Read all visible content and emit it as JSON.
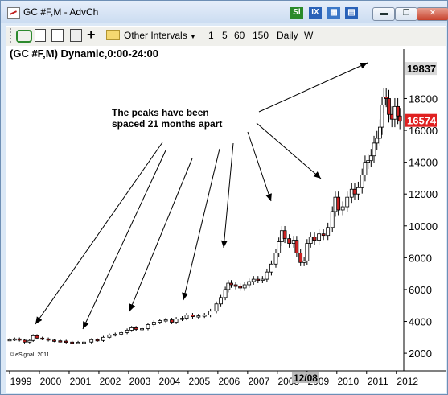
{
  "window": {
    "title": "GC #F,M - AdvCh",
    "icons": [
      "sl-icon",
      "ix-icon",
      "grid-icon",
      "minimize-icon",
      "restore-icon",
      "close-icon"
    ],
    "icon_labels": {
      "sl": "Sl",
      "ix": "IX"
    }
  },
  "toolbar": {
    "interval_menu": "Other Intervals",
    "intervals": [
      "1",
      "5",
      "60",
      "150",
      "Daily",
      "W"
    ]
  },
  "chart": {
    "header": "(GC #F,M) Dynamic,0:00-24:00",
    "watermark": "© eSignal, 2011",
    "annotation_line1": "The peaks have been",
    "annotation_line2": "spaced 21 months apart",
    "cursor_label": "12/08",
    "top_price_label": "19837",
    "last_price_label": "16574",
    "colors": {
      "up": "#ffffff",
      "down": "#cc2222",
      "outline": "#000000",
      "last_price_bg": "#e02020"
    }
  },
  "chart_data": {
    "type": "candlestick",
    "x_tick_labels": [
      "1999",
      "2000",
      "2001",
      "2002",
      "2003",
      "2004",
      "2005",
      "2006",
      "2007",
      "2008",
      "2009",
      "2010",
      "2011",
      "2012"
    ],
    "y_tick_labels": [
      "2000",
      "4000",
      "6000",
      "8000",
      "10000",
      "12000",
      "14000",
      "16000",
      "18000"
    ],
    "ylim": [
      1500,
      20500
    ],
    "xlim": [
      1999.0,
      2012.25
    ],
    "series": [
      {
        "name": "GC #F,M",
        "points": [
          [
            1999.0,
            2850
          ],
          [
            1999.17,
            2900
          ],
          [
            1999.33,
            2820
          ],
          [
            1999.5,
            2700
          ],
          [
            1999.67,
            2800
          ],
          [
            1999.79,
            3100
          ],
          [
            1999.92,
            2950
          ],
          [
            2000.1,
            2900
          ],
          [
            2000.3,
            2820
          ],
          [
            2000.5,
            2780
          ],
          [
            2000.7,
            2760
          ],
          [
            2000.9,
            2700
          ],
          [
            2001.1,
            2650
          ],
          [
            2001.3,
            2690
          ],
          [
            2001.5,
            2700
          ],
          [
            2001.75,
            2850
          ],
          [
            2001.95,
            2800
          ],
          [
            2002.15,
            3000
          ],
          [
            2002.35,
            3150
          ],
          [
            2002.55,
            3200
          ],
          [
            2002.75,
            3300
          ],
          [
            2002.95,
            3450
          ],
          [
            2003.1,
            3600
          ],
          [
            2003.25,
            3500
          ],
          [
            2003.45,
            3550
          ],
          [
            2003.65,
            3800
          ],
          [
            2003.85,
            3950
          ],
          [
            2004.05,
            4050
          ],
          [
            2004.25,
            4100
          ],
          [
            2004.45,
            3950
          ],
          [
            2004.6,
            4150
          ],
          [
            2004.8,
            4200
          ],
          [
            2004.95,
            4400
          ],
          [
            2005.15,
            4300
          ],
          [
            2005.35,
            4350
          ],
          [
            2005.55,
            4400
          ],
          [
            2005.75,
            4650
          ],
          [
            2005.95,
            5100
          ],
          [
            2006.1,
            5500
          ],
          [
            2006.25,
            6000
          ],
          [
            2006.35,
            6400
          ],
          [
            2006.45,
            6300
          ],
          [
            2006.6,
            6200
          ],
          [
            2006.75,
            6100
          ],
          [
            2006.9,
            6300
          ],
          [
            2007.05,
            6500
          ],
          [
            2007.2,
            6650
          ],
          [
            2007.35,
            6600
          ],
          [
            2007.5,
            6650
          ],
          [
            2007.65,
            7100
          ],
          [
            2007.8,
            7600
          ],
          [
            2007.95,
            8300
          ],
          [
            2008.05,
            9000
          ],
          [
            2008.15,
            9700
          ],
          [
            2008.25,
            9200
          ],
          [
            2008.4,
            8900
          ],
          [
            2008.55,
            9100
          ],
          [
            2008.65,
            8300
          ],
          [
            2008.78,
            7700
          ],
          [
            2008.9,
            7800
          ],
          [
            2009.0,
            8900
          ],
          [
            2009.12,
            9300
          ],
          [
            2009.25,
            9100
          ],
          [
            2009.4,
            9500
          ],
          [
            2009.55,
            9400
          ],
          [
            2009.7,
            9900
          ],
          [
            2009.85,
            10900
          ],
          [
            2009.95,
            11800
          ],
          [
            2010.05,
            11000
          ],
          [
            2010.2,
            11200
          ],
          [
            2010.35,
            11800
          ],
          [
            2010.5,
            12300
          ],
          [
            2010.6,
            12000
          ],
          [
            2010.72,
            12400
          ],
          [
            2010.85,
            13200
          ],
          [
            2010.95,
            14000
          ],
          [
            2011.05,
            14100
          ],
          [
            2011.15,
            14400
          ],
          [
            2011.25,
            15200
          ],
          [
            2011.35,
            15500
          ],
          [
            2011.45,
            16200
          ],
          [
            2011.52,
            17600
          ],
          [
            2011.58,
            18100
          ],
          [
            2011.66,
            18000
          ],
          [
            2011.75,
            17000
          ],
          [
            2011.85,
            16700
          ],
          [
            2011.95,
            17500
          ],
          [
            2012.05,
            16900
          ],
          [
            2012.12,
            16574
          ]
        ]
      }
    ]
  }
}
